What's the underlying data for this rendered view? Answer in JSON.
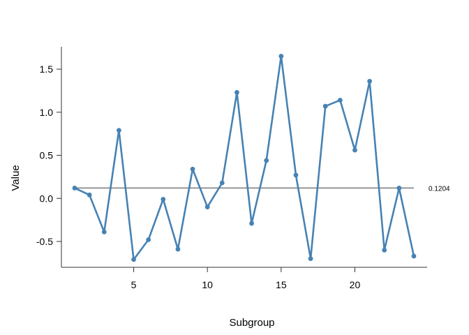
{
  "chart_data": {
    "type": "line",
    "xlabel": "Subgroup",
    "ylabel": "Value",
    "xlim": [
      0.1,
      24.9
    ],
    "ylim": [
      -0.8,
      1.76
    ],
    "x_ticks": [
      5,
      10,
      15,
      20
    ],
    "y_ticks": [
      -0.5,
      0.0,
      0.5,
      1.0,
      1.5
    ],
    "y_tick_labels": [
      "-0.5",
      "0.0",
      "0.5",
      "1.0",
      "1.5"
    ],
    "grid": false,
    "reference_line": {
      "value": 0.1204,
      "label": "0.1204",
      "color": "#666666"
    },
    "series": [
      {
        "color": "#4682b4",
        "x": [
          1,
          2,
          3,
          4,
          5,
          6,
          7,
          8,
          9,
          10,
          11,
          12,
          13,
          14,
          15,
          16,
          17,
          18,
          19,
          20,
          21,
          22,
          23,
          24
        ],
        "y": [
          0.12,
          0.04,
          -0.39,
          0.79,
          -0.71,
          -0.48,
          -0.01,
          -0.59,
          0.34,
          -0.1,
          0.18,
          1.23,
          -0.29,
          0.44,
          1.65,
          0.27,
          -0.7,
          1.07,
          1.14,
          0.56,
          1.36,
          -0.6,
          0.12,
          -0.67
        ]
      }
    ]
  }
}
